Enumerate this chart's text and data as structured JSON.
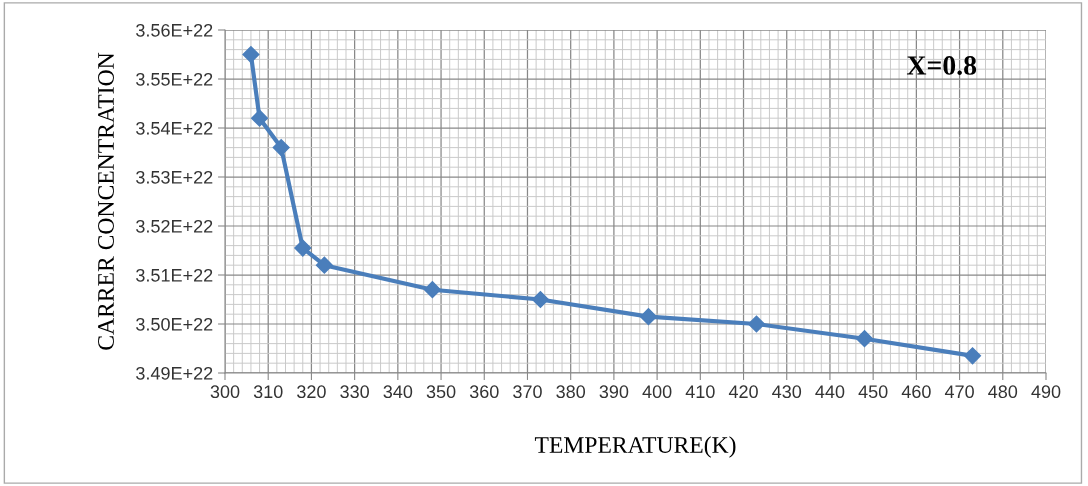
{
  "chart_data": {
    "type": "line",
    "xlabel": "TEMPERATURE(K)",
    "ylabel": "CARRER CONCENTRATION",
    "annotations": [
      "X=0.8"
    ],
    "x": [
      306,
      308,
      313,
      318,
      323,
      348,
      373,
      398,
      423,
      448,
      473
    ],
    "series": [
      {
        "color": "#4a7ebb",
        "values": [
          3.555e+22,
          3.542e+22,
          3.536e+22,
          3.5155e+22,
          3.512e+22,
          3.507e+22,
          3.505e+22,
          3.5015e+22,
          3.5e+22,
          3.497e+22,
          3.4935e+22
        ]
      }
    ],
    "xlim": [
      300,
      490
    ],
    "xticks": [
      300,
      310,
      320,
      330,
      340,
      350,
      360,
      370,
      380,
      390,
      400,
      410,
      420,
      430,
      440,
      450,
      460,
      470,
      480,
      490
    ],
    "ylim": [
      3.49e+22,
      3.56e+22
    ],
    "yticks": [
      {
        "value": 3.49e+22,
        "label": "3.49E+22"
      },
      {
        "value": 3.5e+22,
        "label": "3.50E+22"
      },
      {
        "value": 3.51e+22,
        "label": "3.51E+22"
      },
      {
        "value": 3.52e+22,
        "label": "3.52E+22"
      },
      {
        "value": 3.53e+22,
        "label": "3.53E+22"
      },
      {
        "value": 3.54e+22,
        "label": "3.54E+22"
      },
      {
        "value": 3.55e+22,
        "label": "3.55E+22"
      },
      {
        "value": 3.56e+22,
        "label": "3.56E+22"
      }
    ],
    "grid": true,
    "marker": "diamond",
    "line_style": "solid"
  }
}
